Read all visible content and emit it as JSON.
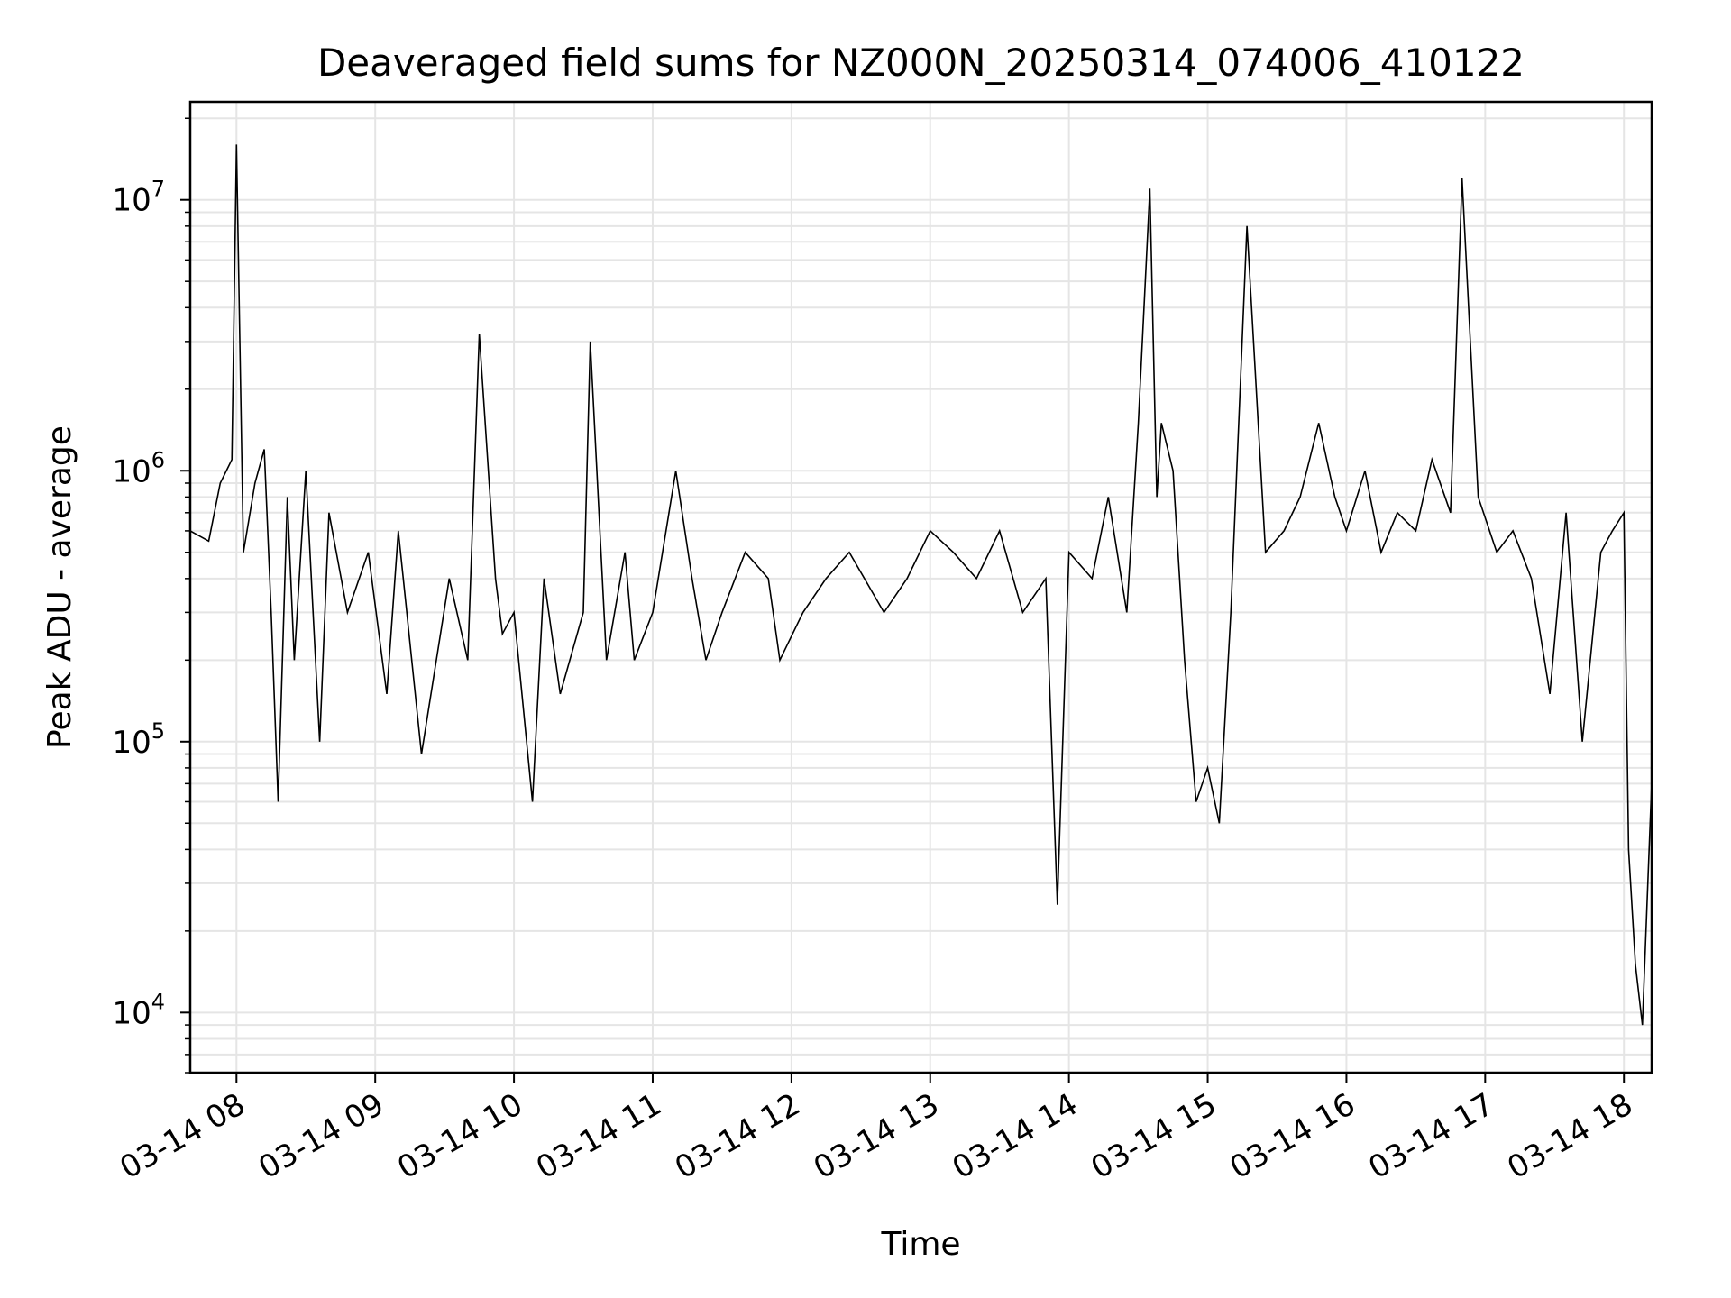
{
  "chart_data": {
    "type": "line",
    "title": "Deaveraged field sums for NZ000N_20250314_074006_410122",
    "xlabel": "Time",
    "ylabel": "Peak ADU - average",
    "x_scale": "time",
    "y_scale": "log",
    "xlim": [
      "2025-03-14 07:40",
      "2025-03-14 18:12"
    ],
    "ylim": [
      6000,
      23000000
    ],
    "x_ticks": [
      "03-14 08",
      "03-14 09",
      "03-14 10",
      "03-14 11",
      "03-14 12",
      "03-14 13",
      "03-14 14",
      "03-14 15",
      "03-14 16",
      "03-14 17",
      "03-14 18"
    ],
    "y_ticks": [
      {
        "value": 10000,
        "base": "10",
        "exp": "4"
      },
      {
        "value": 100000,
        "base": "10",
        "exp": "5"
      },
      {
        "value": 1000000,
        "base": "10",
        "exp": "6"
      },
      {
        "value": 10000000,
        "base": "10",
        "exp": "7"
      }
    ],
    "grid": true,
    "line_color": "#000000",
    "grid_color": "#e5e5e5",
    "series": [
      {
        "x": [
          "2025-03-14 07:40",
          "2025-03-14 07:48",
          "2025-03-14 07:53",
          "2025-03-14 07:58",
          "2025-03-14 08:00",
          "2025-03-14 08:03",
          "2025-03-14 08:08",
          "2025-03-14 08:12",
          "2025-03-14 08:15",
          "2025-03-14 08:18",
          "2025-03-14 08:22",
          "2025-03-14 08:25",
          "2025-03-14 08:30",
          "2025-03-14 08:36",
          "2025-03-14 08:40",
          "2025-03-14 08:48",
          "2025-03-14 08:57",
          "2025-03-14 09:05",
          "2025-03-14 09:10",
          "2025-03-14 09:20",
          "2025-03-14 09:32",
          "2025-03-14 09:40",
          "2025-03-14 09:45",
          "2025-03-14 09:52",
          "2025-03-14 09:55",
          "2025-03-14 10:00",
          "2025-03-14 10:08",
          "2025-03-14 10:13",
          "2025-03-14 10:20",
          "2025-03-14 10:30",
          "2025-03-14 10:33",
          "2025-03-14 10:40",
          "2025-03-14 10:48",
          "2025-03-14 10:52",
          "2025-03-14 11:00",
          "2025-03-14 11:10",
          "2025-03-14 11:17",
          "2025-03-14 11:23",
          "2025-03-14 11:30",
          "2025-03-14 11:40",
          "2025-03-14 11:50",
          "2025-03-14 11:55",
          "2025-03-14 12:05",
          "2025-03-14 12:15",
          "2025-03-14 12:25",
          "2025-03-14 12:40",
          "2025-03-14 12:50",
          "2025-03-14 13:00",
          "2025-03-14 13:10",
          "2025-03-14 13:20",
          "2025-03-14 13:30",
          "2025-03-14 13:40",
          "2025-03-14 13:50",
          "2025-03-14 13:55",
          "2025-03-14 14:00",
          "2025-03-14 14:10",
          "2025-03-14 14:17",
          "2025-03-14 14:25",
          "2025-03-14 14:30",
          "2025-03-14 14:35",
          "2025-03-14 14:38",
          "2025-03-14 14:40",
          "2025-03-14 14:45",
          "2025-03-14 14:50",
          "2025-03-14 14:55",
          "2025-03-14 15:00",
          "2025-03-14 15:05",
          "2025-03-14 15:10",
          "2025-03-14 15:17",
          "2025-03-14 15:25",
          "2025-03-14 15:33",
          "2025-03-14 15:40",
          "2025-03-14 15:48",
          "2025-03-14 15:55",
          "2025-03-14 16:00",
          "2025-03-14 16:08",
          "2025-03-14 16:15",
          "2025-03-14 16:22",
          "2025-03-14 16:30",
          "2025-03-14 16:37",
          "2025-03-14 16:45",
          "2025-03-14 16:50",
          "2025-03-14 16:57",
          "2025-03-14 17:05",
          "2025-03-14 17:12",
          "2025-03-14 17:20",
          "2025-03-14 17:28",
          "2025-03-14 17:35",
          "2025-03-14 17:42",
          "2025-03-14 17:50",
          "2025-03-14 17:55",
          "2025-03-14 18:00",
          "2025-03-14 18:02",
          "2025-03-14 18:05",
          "2025-03-14 18:08",
          "2025-03-14 18:12"
        ],
        "y": [
          600000,
          550000,
          900000,
          1100000,
          16000000,
          500000,
          900000,
          1200000,
          300000,
          60000,
          800000,
          200000,
          1000000,
          100000,
          700000,
          300000,
          500000,
          150000,
          600000,
          90000,
          400000,
          200000,
          3200000,
          400000,
          250000,
          300000,
          60000,
          400000,
          150000,
          300000,
          3000000,
          200000,
          500000,
          200000,
          300000,
          1000000,
          400000,
          200000,
          300000,
          500000,
          400000,
          200000,
          300000,
          400000,
          500000,
          300000,
          400000,
          600000,
          500000,
          400000,
          600000,
          300000,
          400000,
          25000,
          500000,
          400000,
          800000,
          300000,
          1500000,
          11000000,
          800000,
          1500000,
          1000000,
          200000,
          60000,
          80000,
          50000,
          300000,
          8000000,
          500000,
          600000,
          800000,
          1500000,
          800000,
          600000,
          1000000,
          500000,
          700000,
          600000,
          1100000,
          700000,
          12000000,
          800000,
          500000,
          600000,
          400000,
          150000,
          700000,
          100000,
          500000,
          600000,
          700000,
          40000,
          15000,
          9000,
          70000
        ]
      }
    ]
  }
}
